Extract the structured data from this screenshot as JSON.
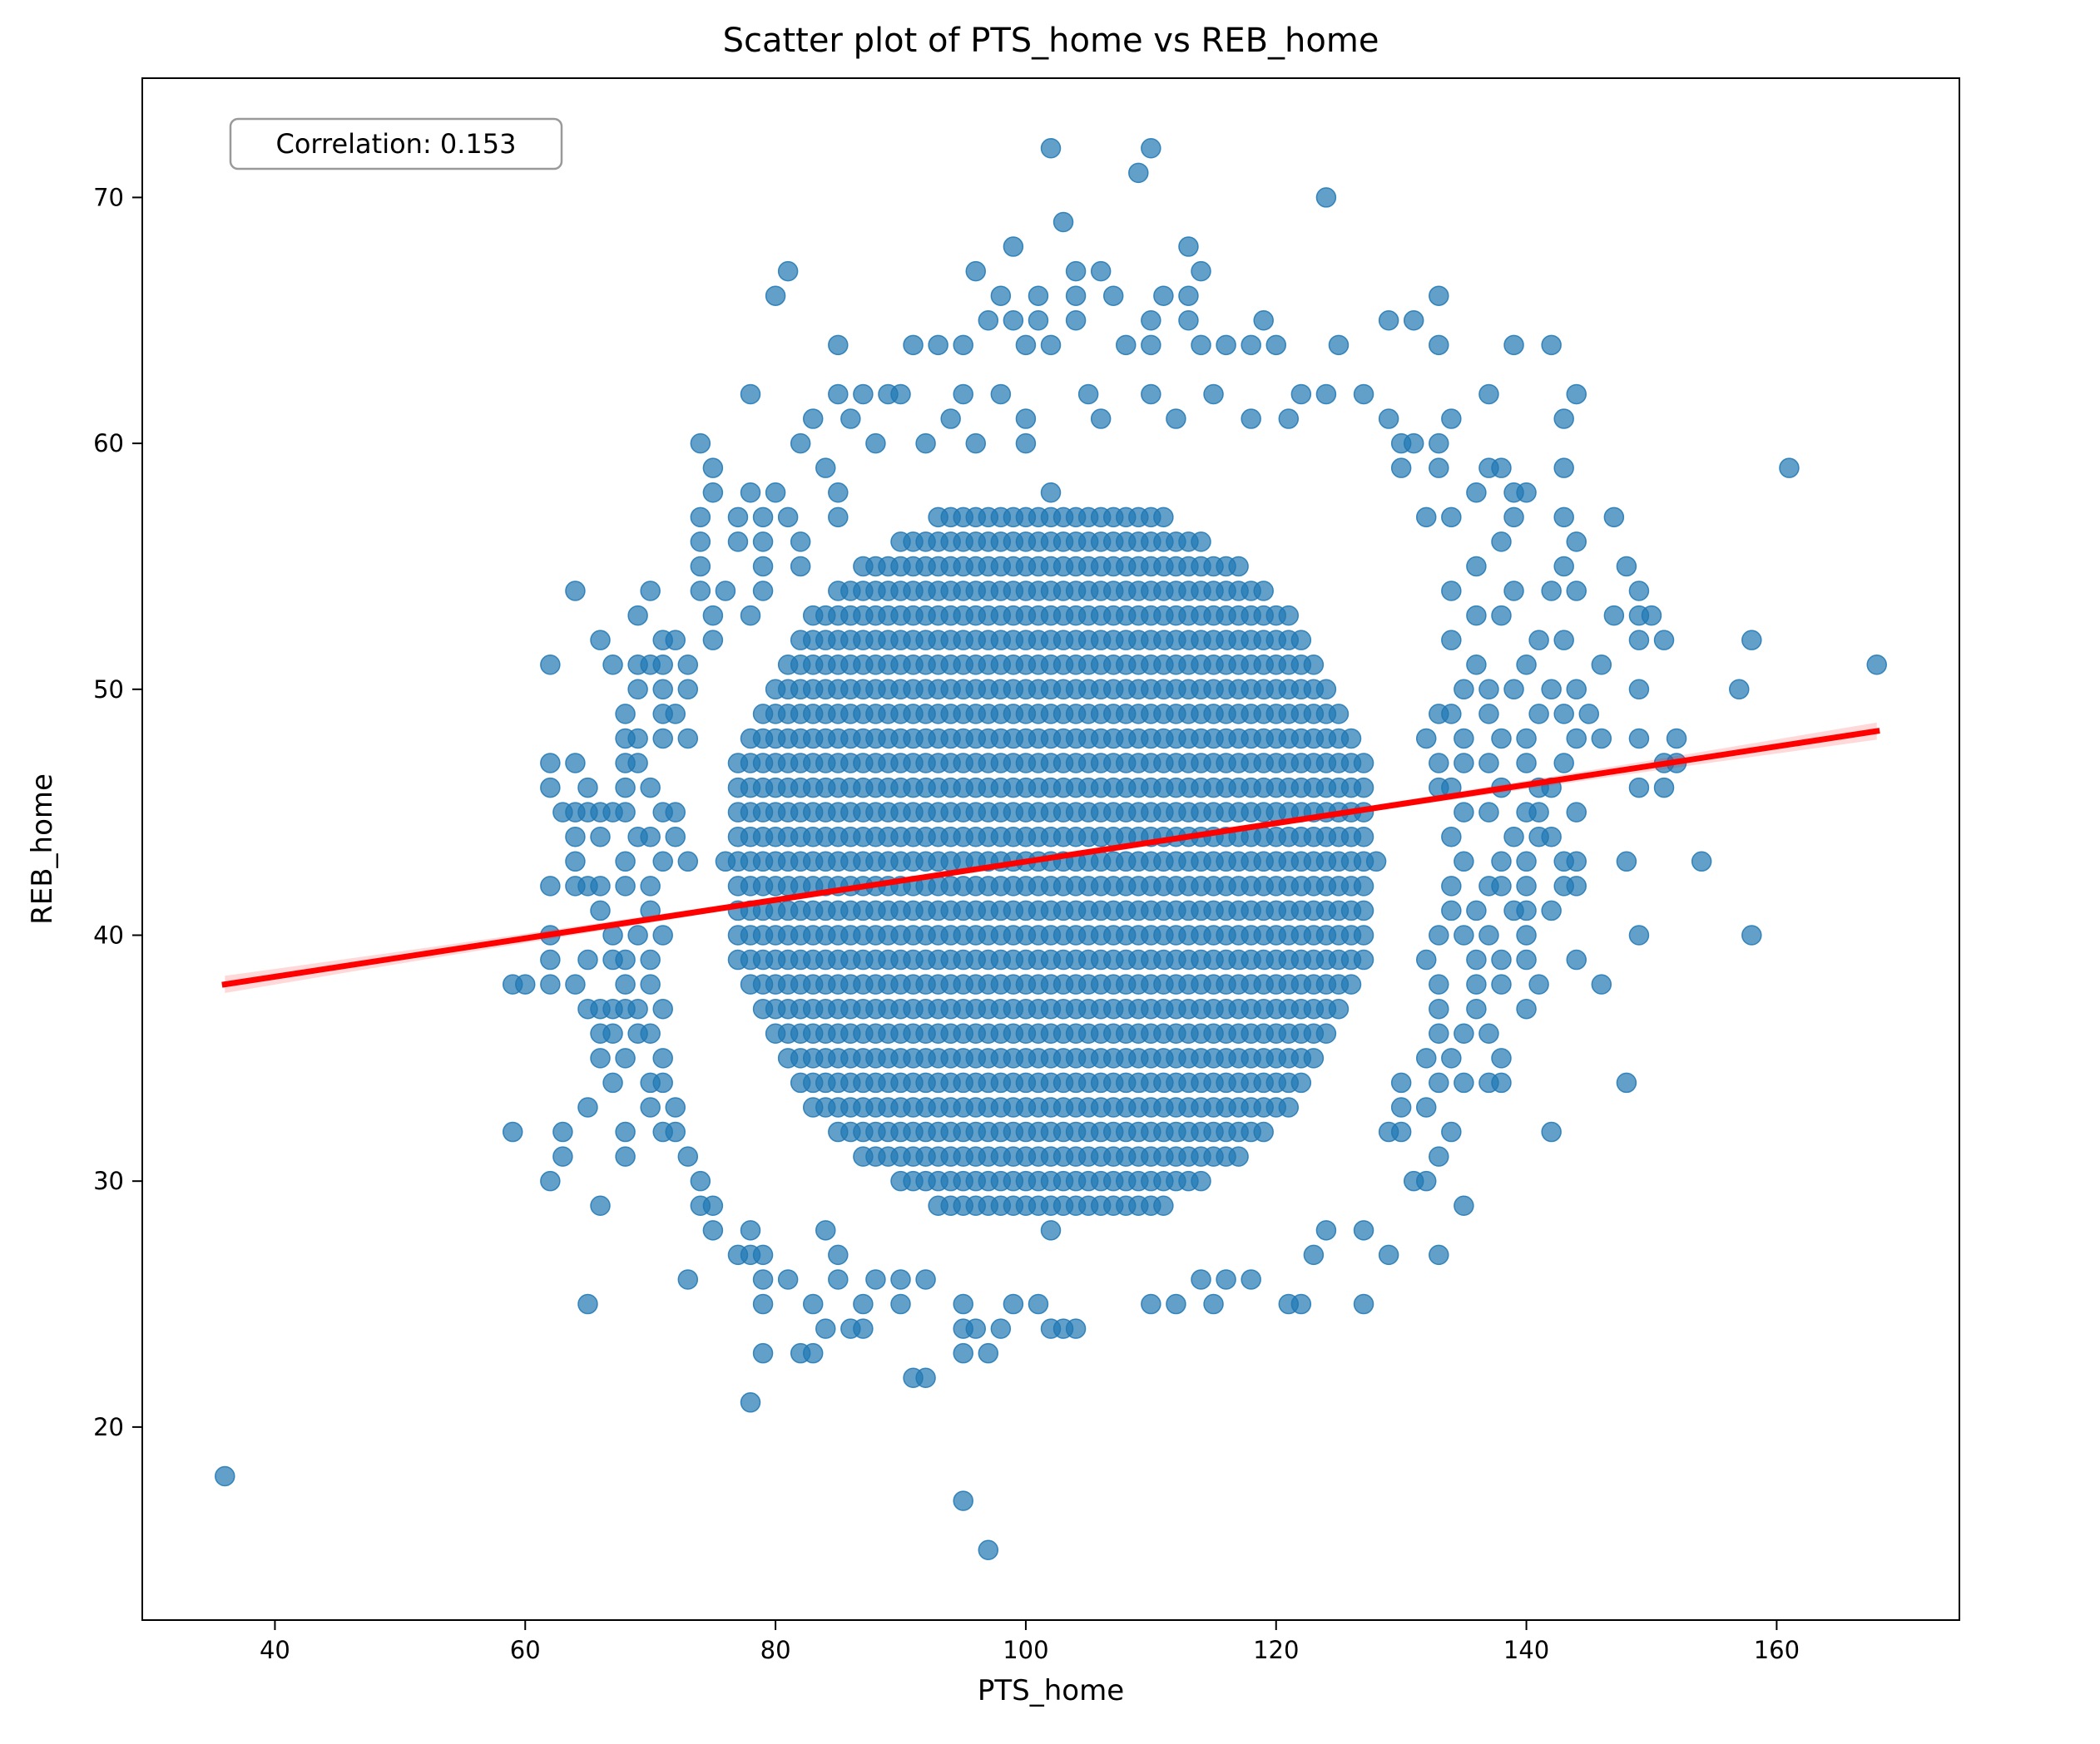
{
  "chart_data": {
    "type": "scatter",
    "title": "Scatter plot of PTS_home vs REB_home",
    "xlabel": "PTS_home",
    "ylabel": "REB_home",
    "xlim": [
      29.4,
      174.6
    ],
    "ylim": [
      12.15,
      74.85
    ],
    "xticks": [
      40,
      60,
      80,
      100,
      120,
      140,
      160
    ],
    "yticks": [
      20,
      30,
      40,
      50,
      60,
      70
    ],
    "grid": false,
    "point_color": "#1f77b4",
    "line_color": "#ff0000",
    "annotation": "Correlation: 0.153",
    "dense_region": {
      "note": "grid of overlapping points at integer values",
      "x_center": 102,
      "y_center": 43,
      "x_halfwidth": 26,
      "y_halfwidth": 15
    },
    "points": [
      [
        36,
        18
      ],
      [
        97,
        15
      ],
      [
        95,
        17
      ],
      [
        78,
        21
      ],
      [
        91,
        22
      ],
      [
        92,
        22
      ],
      [
        79,
        23
      ],
      [
        82,
        23
      ],
      [
        83,
        23
      ],
      [
        95,
        23
      ],
      [
        97,
        23
      ],
      [
        102,
        72
      ],
      [
        110,
        72
      ],
      [
        109,
        71
      ],
      [
        124,
        70
      ],
      [
        103,
        69
      ],
      [
        99,
        68
      ],
      [
        113,
        68
      ],
      [
        81,
        67
      ],
      [
        96,
        67
      ],
      [
        104,
        67
      ],
      [
        106,
        67
      ],
      [
        114,
        67
      ],
      [
        80,
        66
      ],
      [
        98,
        66
      ],
      [
        101,
        66
      ],
      [
        104,
        66
      ],
      [
        107,
        66
      ],
      [
        111,
        66
      ],
      [
        113,
        66
      ],
      [
        133,
        66
      ],
      [
        97,
        65
      ],
      [
        99,
        65
      ],
      [
        101,
        65
      ],
      [
        104,
        65
      ],
      [
        110,
        65
      ],
      [
        113,
        65
      ],
      [
        119,
        65
      ],
      [
        129,
        65
      ],
      [
        131,
        65
      ],
      [
        85,
        64
      ],
      [
        91,
        64
      ],
      [
        93,
        64
      ],
      [
        95,
        64
      ],
      [
        100,
        64
      ],
      [
        102,
        64
      ],
      [
        108,
        64
      ],
      [
        110,
        64
      ],
      [
        114,
        64
      ],
      [
        116,
        64
      ],
      [
        118,
        64
      ],
      [
        120,
        64
      ],
      [
        125,
        64
      ],
      [
        133,
        64
      ],
      [
        139,
        64
      ],
      [
        142,
        64
      ],
      [
        78,
        62
      ],
      [
        85,
        62
      ],
      [
        87,
        62
      ],
      [
        89,
        62
      ],
      [
        90,
        62
      ],
      [
        95,
        62
      ],
      [
        98,
        62
      ],
      [
        105,
        62
      ],
      [
        110,
        62
      ],
      [
        115,
        62
      ],
      [
        122,
        62
      ],
      [
        124,
        62
      ],
      [
        127,
        62
      ],
      [
        137,
        62
      ],
      [
        144,
        62
      ],
      [
        83,
        61
      ],
      [
        86,
        61
      ],
      [
        94,
        61
      ],
      [
        100,
        61
      ],
      [
        106,
        61
      ],
      [
        112,
        61
      ],
      [
        118,
        61
      ],
      [
        121,
        61
      ],
      [
        129,
        61
      ],
      [
        134,
        61
      ],
      [
        143,
        61
      ],
      [
        74,
        60
      ],
      [
        82,
        60
      ],
      [
        88,
        60
      ],
      [
        92,
        60
      ],
      [
        96,
        60
      ],
      [
        100,
        60
      ],
      [
        130,
        60
      ],
      [
        131,
        60
      ],
      [
        133,
        60
      ],
      [
        75,
        59
      ],
      [
        84,
        59
      ],
      [
        130,
        59
      ],
      [
        133,
        59
      ],
      [
        137,
        59
      ],
      [
        138,
        59
      ],
      [
        143,
        59
      ],
      [
        161,
        59
      ],
      [
        75,
        58
      ],
      [
        78,
        58
      ],
      [
        80,
        58
      ],
      [
        85,
        58
      ],
      [
        136,
        58
      ],
      [
        139,
        58
      ],
      [
        140,
        58
      ],
      [
        74,
        57
      ],
      [
        77,
        57
      ],
      [
        79,
        57
      ],
      [
        81,
        57
      ],
      [
        85,
        57
      ],
      [
        132,
        57
      ],
      [
        134,
        57
      ],
      [
        139,
        57
      ],
      [
        143,
        57
      ],
      [
        147,
        57
      ],
      [
        74,
        56
      ],
      [
        77,
        56
      ],
      [
        79,
        56
      ],
      [
        82,
        56
      ],
      [
        138,
        56
      ],
      [
        144,
        56
      ],
      [
        74,
        55
      ],
      [
        79,
        55
      ],
      [
        82,
        55
      ],
      [
        136,
        55
      ],
      [
        143,
        55
      ],
      [
        148,
        55
      ],
      [
        64,
        54
      ],
      [
        70,
        54
      ],
      [
        74,
        54
      ],
      [
        76,
        54
      ],
      [
        79,
        54
      ],
      [
        134,
        54
      ],
      [
        139,
        54
      ],
      [
        142,
        54
      ],
      [
        144,
        54
      ],
      [
        149,
        54
      ],
      [
        69,
        53
      ],
      [
        75,
        53
      ],
      [
        78,
        53
      ],
      [
        136,
        53
      ],
      [
        138,
        53
      ],
      [
        147,
        53
      ],
      [
        149,
        53
      ],
      [
        150,
        53
      ],
      [
        66,
        52
      ],
      [
        71,
        52
      ],
      [
        72,
        52
      ],
      [
        75,
        52
      ],
      [
        134,
        52
      ],
      [
        141,
        52
      ],
      [
        143,
        52
      ],
      [
        149,
        52
      ],
      [
        151,
        52
      ],
      [
        158,
        52
      ],
      [
        62,
        51
      ],
      [
        67,
        51
      ],
      [
        69,
        51
      ],
      [
        70,
        51
      ],
      [
        71,
        51
      ],
      [
        73,
        51
      ],
      [
        136,
        51
      ],
      [
        140,
        51
      ],
      [
        146,
        51
      ],
      [
        168,
        51
      ],
      [
        69,
        50
      ],
      [
        71,
        50
      ],
      [
        73,
        50
      ],
      [
        135,
        50
      ],
      [
        137,
        50
      ],
      [
        139,
        50
      ],
      [
        142,
        50
      ],
      [
        144,
        50
      ],
      [
        149,
        50
      ],
      [
        157,
        50
      ],
      [
        68,
        49
      ],
      [
        71,
        49
      ],
      [
        72,
        49
      ],
      [
        133,
        49
      ],
      [
        134,
        49
      ],
      [
        137,
        49
      ],
      [
        141,
        49
      ],
      [
        143,
        49
      ],
      [
        145,
        49
      ],
      [
        68,
        48
      ],
      [
        69,
        48
      ],
      [
        71,
        48
      ],
      [
        73,
        48
      ],
      [
        132,
        48
      ],
      [
        135,
        48
      ],
      [
        138,
        48
      ],
      [
        140,
        48
      ],
      [
        144,
        48
      ],
      [
        146,
        48
      ],
      [
        149,
        48
      ],
      [
        152,
        48
      ],
      [
        62,
        47
      ],
      [
        64,
        47
      ],
      [
        68,
        47
      ],
      [
        69,
        47
      ],
      [
        133,
        47
      ],
      [
        135,
        47
      ],
      [
        137,
        47
      ],
      [
        140,
        47
      ],
      [
        143,
        47
      ],
      [
        151,
        47
      ],
      [
        152,
        47
      ],
      [
        62,
        46
      ],
      [
        65,
        46
      ],
      [
        68,
        46
      ],
      [
        70,
        46
      ],
      [
        133,
        46
      ],
      [
        134,
        46
      ],
      [
        138,
        46
      ],
      [
        141,
        46
      ],
      [
        142,
        46
      ],
      [
        149,
        46
      ],
      [
        151,
        46
      ],
      [
        63,
        45
      ],
      [
        64,
        45
      ],
      [
        65,
        45
      ],
      [
        66,
        45
      ],
      [
        67,
        45
      ],
      [
        68,
        45
      ],
      [
        71,
        45
      ],
      [
        72,
        45
      ],
      [
        135,
        45
      ],
      [
        137,
        45
      ],
      [
        140,
        45
      ],
      [
        141,
        45
      ],
      [
        144,
        45
      ],
      [
        64,
        44
      ],
      [
        66,
        44
      ],
      [
        69,
        44
      ],
      [
        70,
        44
      ],
      [
        72,
        44
      ],
      [
        134,
        44
      ],
      [
        139,
        44
      ],
      [
        141,
        44
      ],
      [
        142,
        44
      ],
      [
        64,
        43
      ],
      [
        68,
        43
      ],
      [
        71,
        43
      ],
      [
        73,
        43
      ],
      [
        135,
        43
      ],
      [
        138,
        43
      ],
      [
        140,
        43
      ],
      [
        143,
        43
      ],
      [
        144,
        43
      ],
      [
        148,
        43
      ],
      [
        154,
        43
      ],
      [
        62,
        42
      ],
      [
        64,
        42
      ],
      [
        65,
        42
      ],
      [
        66,
        42
      ],
      [
        68,
        42
      ],
      [
        70,
        42
      ],
      [
        134,
        42
      ],
      [
        137,
        42
      ],
      [
        138,
        42
      ],
      [
        140,
        42
      ],
      [
        143,
        42
      ],
      [
        144,
        42
      ],
      [
        66,
        41
      ],
      [
        70,
        41
      ],
      [
        134,
        41
      ],
      [
        136,
        41
      ],
      [
        139,
        41
      ],
      [
        140,
        41
      ],
      [
        142,
        41
      ],
      [
        62,
        40
      ],
      [
        67,
        40
      ],
      [
        69,
        40
      ],
      [
        71,
        40
      ],
      [
        133,
        40
      ],
      [
        135,
        40
      ],
      [
        137,
        40
      ],
      [
        140,
        40
      ],
      [
        149,
        40
      ],
      [
        158,
        40
      ],
      [
        62,
        39
      ],
      [
        65,
        39
      ],
      [
        67,
        39
      ],
      [
        68,
        39
      ],
      [
        70,
        39
      ],
      [
        132,
        39
      ],
      [
        136,
        39
      ],
      [
        138,
        39
      ],
      [
        140,
        39
      ],
      [
        144,
        39
      ],
      [
        59,
        38
      ],
      [
        60,
        38
      ],
      [
        62,
        38
      ],
      [
        64,
        38
      ],
      [
        68,
        38
      ],
      [
        70,
        38
      ],
      [
        133,
        38
      ],
      [
        136,
        38
      ],
      [
        138,
        38
      ],
      [
        141,
        38
      ],
      [
        146,
        38
      ],
      [
        65,
        37
      ],
      [
        66,
        37
      ],
      [
        67,
        37
      ],
      [
        68,
        37
      ],
      [
        69,
        37
      ],
      [
        71,
        37
      ],
      [
        133,
        37
      ],
      [
        136,
        37
      ],
      [
        140,
        37
      ],
      [
        66,
        36
      ],
      [
        67,
        36
      ],
      [
        69,
        36
      ],
      [
        70,
        36
      ],
      [
        133,
        36
      ],
      [
        135,
        36
      ],
      [
        137,
        36
      ],
      [
        66,
        35
      ],
      [
        68,
        35
      ],
      [
        71,
        35
      ],
      [
        132,
        35
      ],
      [
        134,
        35
      ],
      [
        138,
        35
      ],
      [
        67,
        34
      ],
      [
        70,
        34
      ],
      [
        71,
        34
      ],
      [
        130,
        34
      ],
      [
        133,
        34
      ],
      [
        135,
        34
      ],
      [
        137,
        34
      ],
      [
        138,
        34
      ],
      [
        148,
        34
      ],
      [
        65,
        33
      ],
      [
        70,
        33
      ],
      [
        72,
        33
      ],
      [
        130,
        33
      ],
      [
        132,
        33
      ],
      [
        59,
        32
      ],
      [
        63,
        32
      ],
      [
        68,
        32
      ],
      [
        71,
        32
      ],
      [
        72,
        32
      ],
      [
        129,
        32
      ],
      [
        130,
        32
      ],
      [
        134,
        32
      ],
      [
        142,
        32
      ],
      [
        63,
        31
      ],
      [
        68,
        31
      ],
      [
        73,
        31
      ],
      [
        133,
        31
      ],
      [
        62,
        30
      ],
      [
        74,
        30
      ],
      [
        131,
        30
      ],
      [
        132,
        30
      ],
      [
        66,
        29
      ],
      [
        74,
        29
      ],
      [
        75,
        29
      ],
      [
        135,
        29
      ],
      [
        75,
        28
      ],
      [
        78,
        28
      ],
      [
        84,
        28
      ],
      [
        124,
        28
      ],
      [
        127,
        28
      ],
      [
        77,
        27
      ],
      [
        78,
        27
      ],
      [
        79,
        27
      ],
      [
        85,
        27
      ],
      [
        123,
        27
      ],
      [
        129,
        27
      ],
      [
        133,
        27
      ],
      [
        73,
        26
      ],
      [
        79,
        26
      ],
      [
        81,
        26
      ],
      [
        85,
        26
      ],
      [
        88,
        26
      ],
      [
        90,
        26
      ],
      [
        92,
        26
      ],
      [
        114,
        26
      ],
      [
        116,
        26
      ],
      [
        118,
        26
      ],
      [
        65,
        25
      ],
      [
        79,
        25
      ],
      [
        83,
        25
      ],
      [
        87,
        25
      ],
      [
        90,
        25
      ],
      [
        95,
        25
      ],
      [
        99,
        25
      ],
      [
        101,
        25
      ],
      [
        110,
        25
      ],
      [
        112,
        25
      ],
      [
        115,
        25
      ],
      [
        121,
        25
      ],
      [
        122,
        25
      ],
      [
        127,
        25
      ],
      [
        84,
        24
      ],
      [
        86,
        24
      ],
      [
        87,
        24
      ],
      [
        95,
        24
      ],
      [
        96,
        24
      ],
      [
        98,
        24
      ],
      [
        102,
        24
      ],
      [
        103,
        24
      ],
      [
        104,
        24
      ]
    ],
    "regression": {
      "x": [
        36,
        168
      ],
      "y": [
        38.0,
        48.3
      ],
      "ci_halfwidth_ends": 0.35,
      "ci_halfwidth_mid": 0.08
    }
  }
}
